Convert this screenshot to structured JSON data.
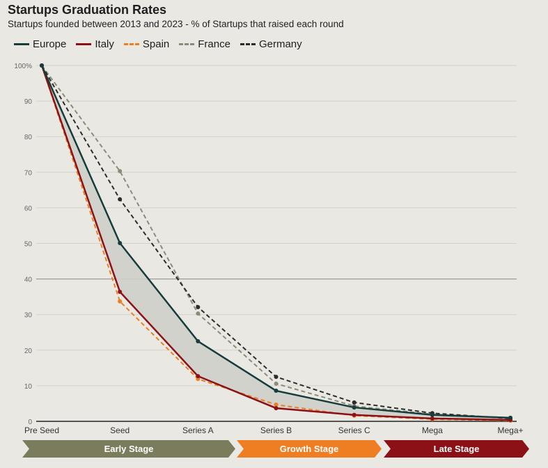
{
  "chart_data": {
    "type": "line",
    "title": "Startups Graduation Rates",
    "subtitle": "Startups founded between 2013 and 2023 - % of Startups that raised each round",
    "categories": [
      "Pre Seed",
      "Seed",
      "Series A",
      "Series B",
      "Series C",
      "Mega",
      "Mega+"
    ],
    "ylim": [
      0,
      100
    ],
    "yticks": [
      0,
      10,
      20,
      30,
      40,
      50,
      60,
      70,
      80,
      90,
      100
    ],
    "ytick_labels": [
      "0",
      "10",
      "20",
      "30",
      "40",
      "50",
      "60",
      "70",
      "80",
      "90",
      "100%"
    ],
    "grid": true,
    "legend_position": "top-left",
    "shaded_between": [
      "Europe",
      "Italy"
    ],
    "series": [
      {
        "name": "Europe",
        "color": "#173c3c",
        "dashed": false,
        "values": [
          100,
          50.1,
          22.5,
          8.6,
          3.9,
          1.8,
          1.0
        ]
      },
      {
        "name": "Italy",
        "color": "#8b1116",
        "dashed": false,
        "values": [
          100,
          36.4,
          12.7,
          3.7,
          1.8,
          0.8,
          0.4
        ]
      },
      {
        "name": "Spain",
        "color": "#ef7d22",
        "dashed": true,
        "values": [
          100,
          33.7,
          11.9,
          4.7,
          1.6,
          0.6,
          0.2
        ]
      },
      {
        "name": "France",
        "color": "#8a8c78",
        "dashed": true,
        "values": [
          100,
          70.3,
          30.3,
          10.6,
          4.3,
          2.0,
          1.0
        ]
      },
      {
        "name": "Germany",
        "color": "#2b2b2b",
        "dashed": true,
        "values": [
          100,
          62.4,
          32.1,
          12.5,
          5.3,
          2.3,
          0.8
        ]
      }
    ],
    "stages": [
      {
        "label": "Early Stage",
        "color": "#7b7c5c"
      },
      {
        "label": "Growth Stage",
        "color": "#ef7d22"
      },
      {
        "label": "Late Stage",
        "color": "#8b1116"
      }
    ]
  }
}
